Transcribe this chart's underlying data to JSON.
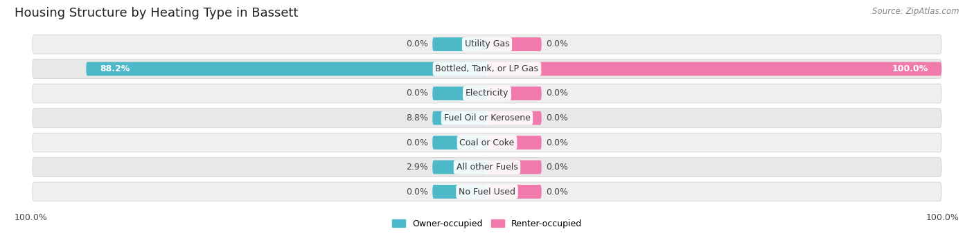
{
  "title": "Housing Structure by Heating Type in Bassett",
  "source": "Source: ZipAtlas.com",
  "categories": [
    "Utility Gas",
    "Bottled, Tank, or LP Gas",
    "Electricity",
    "Fuel Oil or Kerosene",
    "Coal or Coke",
    "All other Fuels",
    "No Fuel Used"
  ],
  "owner_values": [
    0.0,
    88.2,
    0.0,
    8.8,
    0.0,
    2.9,
    0.0
  ],
  "renter_values": [
    0.0,
    100.0,
    0.0,
    0.0,
    0.0,
    0.0,
    0.0
  ],
  "owner_color": "#4db8c8",
  "renter_color": "#f07aab",
  "row_bg_color": "#efefef",
  "row_bg_color_alt": "#e8e8e8",
  "owner_label": "Owner-occupied",
  "renter_label": "Renter-occupied",
  "axis_min": -100.0,
  "axis_max": 100.0,
  "min_stub": 12.0,
  "title_fontsize": 13,
  "label_fontsize": 9,
  "source_fontsize": 8.5,
  "axis_label_fontsize": 9,
  "left_axis_label": "100.0%",
  "right_axis_label": "100.0%"
}
